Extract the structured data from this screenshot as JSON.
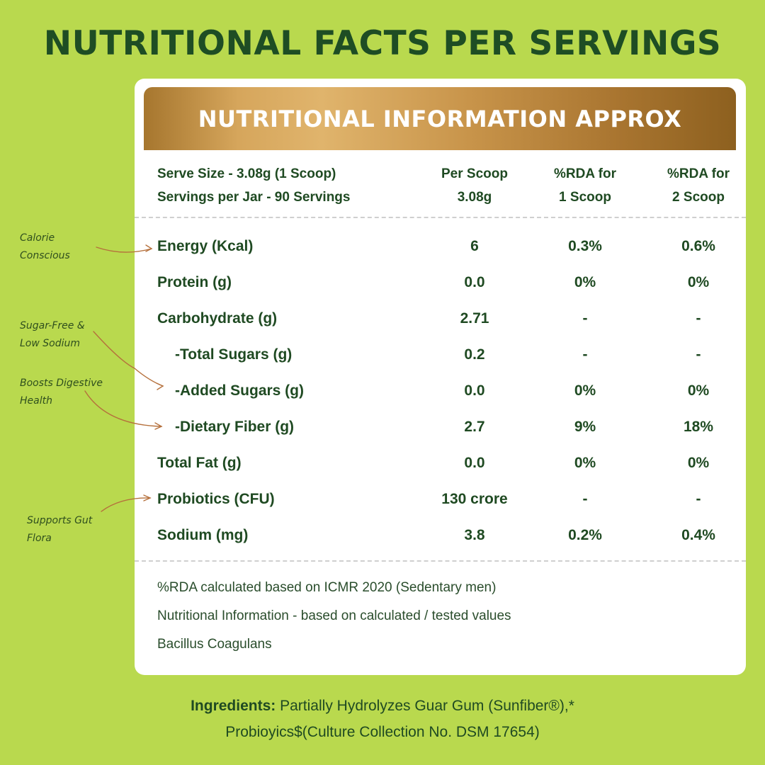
{
  "title": "NUTRITIONAL FACTS PER SERVINGS",
  "card": {
    "banner": "NUTRITIONAL INFORMATION APPROX",
    "header": {
      "serve_size": "Serve Size - 3.08g (1 Scoop)",
      "servings": "Servings per Jar - 90 Servings",
      "per_scoop_line1": "Per Scoop",
      "per_scoop_line2": "3.08g",
      "rda1_line1": "%RDA for",
      "rda1_line2": "1 Scoop",
      "rda2_line1": "%RDA for",
      "rda2_line2": "2 Scoop"
    },
    "rows": [
      {
        "name": "Energy (Kcal)",
        "per": "6",
        "rda1": "0.3%",
        "rda2": "0.6%"
      },
      {
        "name": "Protein (g)",
        "per": "0.0",
        "rda1": "0%",
        "rda2": "0%"
      },
      {
        "name": "Carbohydrate (g)",
        "per": "2.71",
        "rda1": "-",
        "rda2": "-"
      },
      {
        "name": "-Total Sugars (g)",
        "per": "0.2",
        "rda1": "-",
        "rda2": "-"
      },
      {
        "name": "-Added Sugars (g)",
        "per": "0.0",
        "rda1": "0%",
        "rda2": "0%"
      },
      {
        "name": "-Dietary Fiber (g)",
        "per": "2.7",
        "rda1": "9%",
        "rda2": "18%"
      },
      {
        "name": "Total Fat (g)",
        "per": "0.0",
        "rda1": "0%",
        "rda2": "0%"
      },
      {
        "name": "Probiotics (CFU)",
        "per": "130 crore",
        "rda1": "-",
        "rda2": "-"
      },
      {
        "name": "Sodium (mg)",
        "per": "3.8",
        "rda1": "0.2%",
        "rda2": "0.4%"
      }
    ],
    "notes": [
      "%RDA calculated based on ICMR 2020 (Sedentary men)",
      "Nutritional Information - based on calculated / tested values",
      "Bacillus Coagulans"
    ]
  },
  "annotations": {
    "calorie_1": "Calorie",
    "calorie_2": "Conscious",
    "sugar_1": "Sugar-Free &",
    "sugar_2": "Low Sodium",
    "digestive_1": "Boosts Digestive",
    "digestive_2": "Health",
    "gut_1": "Supports Gut",
    "gut_2": "Flora"
  },
  "ingredients": {
    "label": "Ingredients:",
    "line1": "Partially Hydrolyzes Guar Gum (Sunfiber®),*",
    "line2": "Probioyics$(Culture Collection No. DSM 17654)"
  },
  "colors": {
    "background": "#b9d94e",
    "text_dark_green": "#1f4a22",
    "banner_gold": "#c8944a",
    "card": "#ffffff"
  }
}
